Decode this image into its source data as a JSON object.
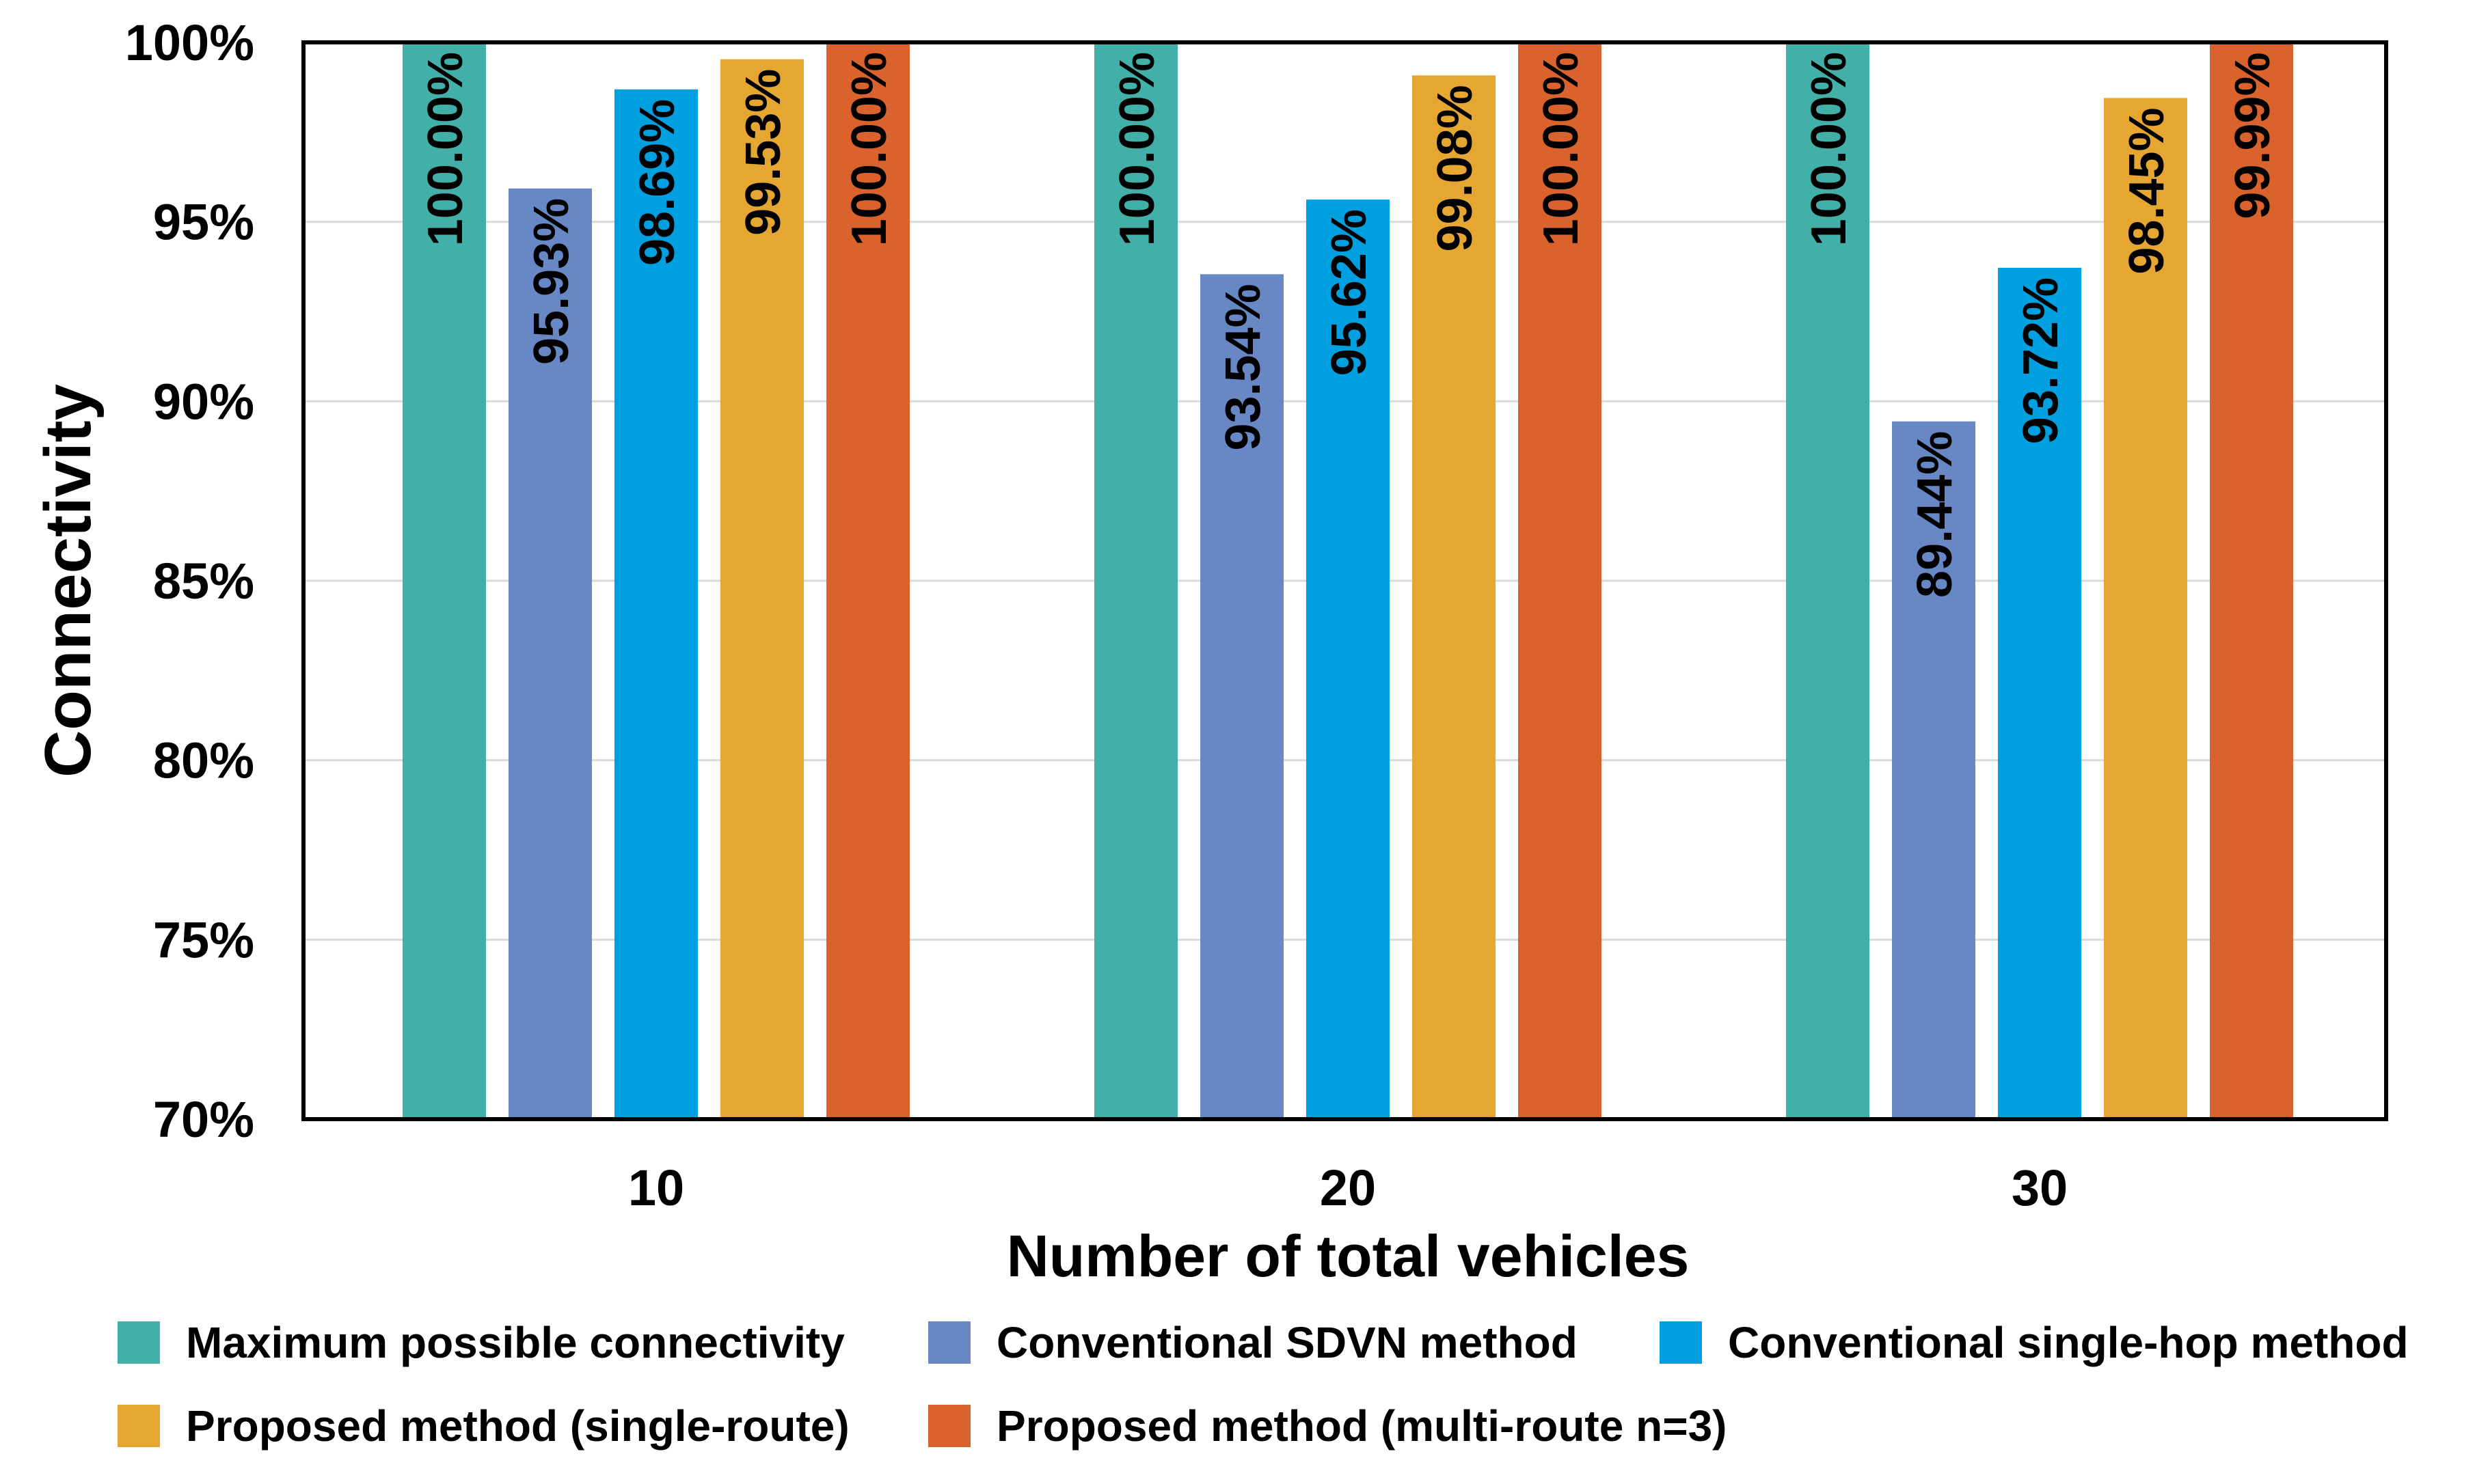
{
  "chart_data": {
    "type": "bar",
    "title": "",
    "xlabel": "Number of total vehicles",
    "ylabel": "Connectivity",
    "categories": [
      "10",
      "20",
      "30"
    ],
    "ylim": [
      70,
      100
    ],
    "yticks": [
      70,
      75,
      80,
      85,
      90,
      95,
      100
    ],
    "ytick_labels": [
      "70%",
      "75%",
      "80%",
      "85%",
      "90%",
      "95%",
      "100%"
    ],
    "grid": "horizontal",
    "legend_position": "bottom",
    "series": [
      {
        "name": "Maximum possible connectivity",
        "color": "#42afa8",
        "values": [
          100.0,
          100.0,
          100.0
        ],
        "labels": [
          "100.00%",
          "100.00%",
          "100.00%"
        ]
      },
      {
        "name": "Conventional SDVN method",
        "color": "#6787c5",
        "values": [
          95.93,
          93.54,
          89.44
        ],
        "labels": [
          "95.93%",
          "93.54%",
          "89.44%"
        ]
      },
      {
        "name": "Conventional single-hop method",
        "color": "#00a0e0",
        "values": [
          98.69,
          95.62,
          93.72
        ],
        "labels": [
          "98.69%",
          "95.62%",
          "93.72%"
        ]
      },
      {
        "name": "Proposed method (single-route)",
        "color": "#e5a731",
        "values": [
          99.53,
          99.08,
          98.45
        ],
        "labels": [
          "99.53%",
          "99.08%",
          "98.45%"
        ]
      },
      {
        "name": "Proposed method (multi-route n=3)",
        "color": "#d9622d",
        "values": [
          100.0,
          100.0,
          99.99
        ],
        "labels": [
          "100.00%",
          "100.00%",
          "99.99%"
        ]
      }
    ]
  }
}
